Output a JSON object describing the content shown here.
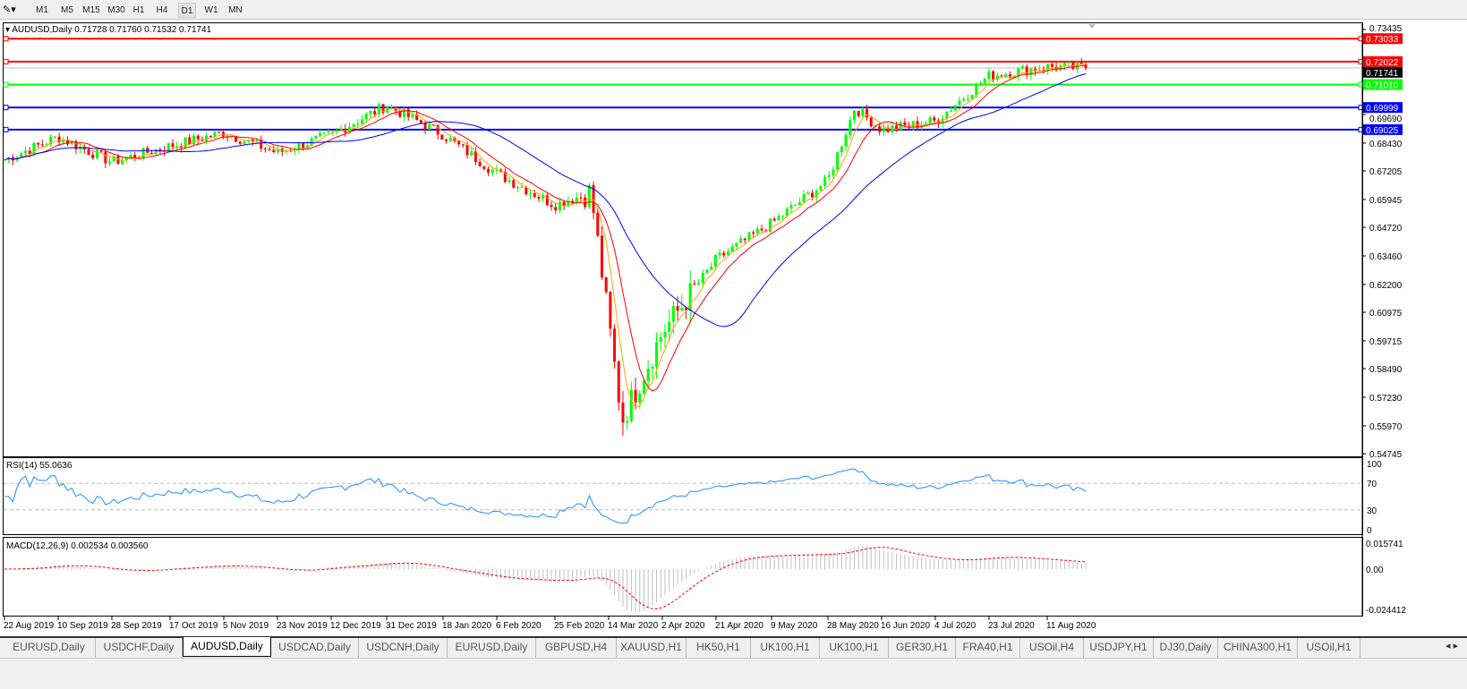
{
  "toolbar": {
    "timeframes": [
      "M1",
      "M5",
      "M15",
      "M30",
      "H1",
      "H4",
      "D1",
      "W1",
      "MN"
    ],
    "active_timeframe": "D1"
  },
  "chart": {
    "title": "AUDUSD,Daily  0.71728 0.71760 0.71532 0.71741",
    "current_price": "0.71741",
    "price_ticks": [
      "0.73435",
      "0.69690",
      "0.68430",
      "0.67205",
      "0.65945",
      "0.64720",
      "0.63460",
      "0.62200",
      "0.60975",
      "0.59715",
      "0.58490",
      "0.57230",
      "0.55970",
      "0.54745"
    ],
    "horizontal_lines": [
      {
        "price": "0.73033",
        "color": "#ff0000"
      },
      {
        "price": "0.72022",
        "color": "#ff0000"
      },
      {
        "price": "0.71010",
        "color": "#00ff00"
      },
      {
        "price": "0.69999",
        "color": "#0000ff"
      },
      {
        "price": "0.69025",
        "color": "#0000ff"
      }
    ],
    "date_ticks": [
      "22 Aug 2019",
      "10 Sep 2019",
      "28 Sep 2019",
      "17 Oct 2019",
      "5 Nov 2019",
      "23 Nov 2019",
      "12 Dec 2019",
      "31 Dec 2019",
      "18 Jan 2020",
      "6 Feb 2020",
      "25 Feb 2020",
      "14 Mar 2020",
      "2 Apr 2020",
      "21 Apr 2020",
      "9 May 2020",
      "28 May 2020",
      "16 Jun 2020",
      "4 Jul 2020",
      "23 Jul 2020",
      "11 Aug 2020"
    ],
    "colors": {
      "bull": "#00ff00",
      "bear": "#ff0000",
      "ma_fast": "#ffa500",
      "ma_mid": "#ff0000",
      "ma_slow": "#0000ff"
    }
  },
  "rsi": {
    "label": "RSI(14) 55.0636",
    "ticks": [
      "100",
      "70",
      "30",
      "0"
    ],
    "color": "#1e90ff"
  },
  "macd": {
    "label": "MACD(12,26,9) 0.002534 0.003560",
    "ticks": [
      "0.015741",
      "0.00",
      "-0.024412"
    ]
  },
  "chart_data": {
    "type": "candlestick",
    "symbol": "AUDUSD",
    "timeframe": "Daily",
    "ylim": [
      0.54745,
      0.73435
    ],
    "approx_closes": [
      {
        "date": "22 Aug 2019",
        "close": 0.677
      },
      {
        "date": "10 Sep 2019",
        "close": 0.687
      },
      {
        "date": "28 Sep 2019",
        "close": 0.676
      },
      {
        "date": "17 Oct 2019",
        "close": 0.683
      },
      {
        "date": "5 Nov 2019",
        "close": 0.689
      },
      {
        "date": "23 Nov 2019",
        "close": 0.68
      },
      {
        "date": "12 Dec 2019",
        "close": 0.688
      },
      {
        "date": "31 Dec 2019",
        "close": 0.701
      },
      {
        "date": "18 Jan 2020",
        "close": 0.688
      },
      {
        "date": "6 Feb 2020",
        "close": 0.671
      },
      {
        "date": "25 Feb 2020",
        "close": 0.657
      },
      {
        "date": "9 Mar 2020",
        "close": 0.663
      },
      {
        "date": "19 Mar 2020",
        "close": 0.562
      },
      {
        "date": "2 Apr 2020",
        "close": 0.601
      },
      {
        "date": "21 Apr 2020",
        "close": 0.633
      },
      {
        "date": "9 May 2020",
        "close": 0.649
      },
      {
        "date": "28 May 2020",
        "close": 0.668
      },
      {
        "date": "8 Jun 2020",
        "close": 0.7
      },
      {
        "date": "16 Jun 2020",
        "close": 0.69
      },
      {
        "date": "4 Jul 2020",
        "close": 0.694
      },
      {
        "date": "23 Jul 2020",
        "close": 0.714
      },
      {
        "date": "11 Aug 2020",
        "close": 0.718
      },
      {
        "date": "20 Aug 2020",
        "close": 0.71741
      }
    ]
  },
  "tabs": [
    "EURUSD,Daily",
    "USDCHF,Daily",
    "AUDUSD,Daily",
    "USDCAD,Daily",
    "USDCNH,Daily",
    "EURUSD,Daily",
    "GBPUSD,H4",
    "XAUUSD,H1",
    "HK50,H1",
    "UK100,H1",
    "UK100,H1",
    "GER30,H1",
    "FRA40,H1",
    "USOil,H4",
    "USDJPY,H1",
    "DJ30,Daily",
    "CHINA300,H1",
    "USOil,H1"
  ],
  "active_tab": "AUDUSD,Daily"
}
